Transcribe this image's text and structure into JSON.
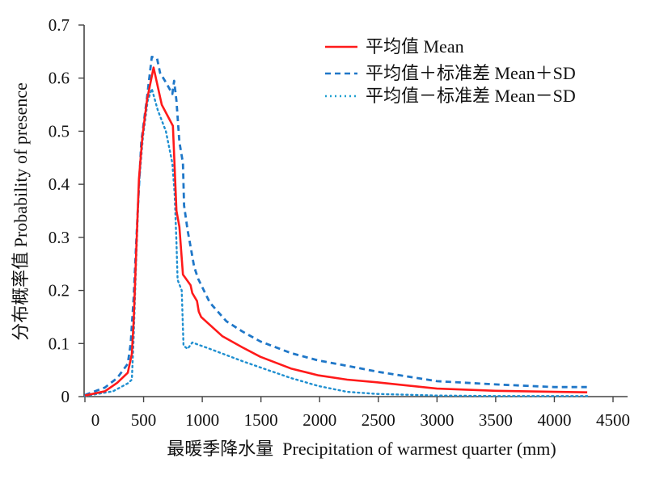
{
  "chart_data": {
    "type": "line",
    "title": "",
    "xlabel": "最暖季降水量  Precipitation of warmest quarter (mm)",
    "ylabel": "分布概率值 Probability of presence",
    "xlim": [
      0,
      4500
    ],
    "ylim": [
      0,
      0.7
    ],
    "x_ticks": [
      0,
      500,
      1000,
      1500,
      2000,
      2500,
      3000,
      3500,
      4000,
      4500
    ],
    "x_tick_labels": [
      "0",
      "500",
      "1000",
      "1500",
      "2000",
      "2500",
      "3000",
      "3500",
      "4000",
      "4500"
    ],
    "y_ticks": [
      0,
      0.1,
      0.2,
      0.3,
      0.4,
      0.5,
      0.6,
      0.7
    ],
    "y_tick_labels": [
      "0",
      "0.1",
      "0.2",
      "0.3",
      "0.4",
      "0.5",
      "0.6",
      "0.7"
    ],
    "grid": false,
    "legend_position": "top-right",
    "series": [
      {
        "name": "平均值 Mean",
        "color": "#ff1a1a",
        "style": "solid",
        "x": [
          0,
          170,
          275,
          365,
          400,
          415,
          435,
          460,
          490,
          530,
          585,
          655,
          750,
          765,
          780,
          805,
          835,
          900,
          915,
          955,
          970,
          990,
          1170,
          1340,
          1495,
          1755,
          1990,
          2235,
          2490,
          3000,
          3500,
          4000,
          4280
        ],
        "y": [
          0.002,
          0.01,
          0.026,
          0.045,
          0.08,
          0.14,
          0.26,
          0.41,
          0.49,
          0.56,
          0.62,
          0.55,
          0.51,
          0.43,
          0.35,
          0.32,
          0.23,
          0.21,
          0.195,
          0.18,
          0.16,
          0.15,
          0.114,
          0.093,
          0.075,
          0.053,
          0.04,
          0.032,
          0.027,
          0.015,
          0.011,
          0.009,
          0.008
        ]
      },
      {
        "name": "平均值＋标准差 Mean＋SD",
        "color": "#1f77c8",
        "style": "dashed",
        "x": [
          0,
          170,
          275,
          365,
          390,
          415,
          450,
          480,
          530,
          570,
          615,
          640,
          695,
          745,
          760,
          780,
          805,
          835,
          845,
          875,
          900,
          930,
          965,
          1065,
          1205,
          1340,
          1495,
          1755,
          1990,
          2235,
          2490,
          3000,
          3500,
          4000,
          4280
        ],
        "y": [
          0.003,
          0.017,
          0.035,
          0.062,
          0.1,
          0.185,
          0.35,
          0.48,
          0.565,
          0.64,
          0.637,
          0.61,
          0.59,
          0.57,
          0.595,
          0.557,
          0.48,
          0.44,
          0.36,
          0.313,
          0.283,
          0.245,
          0.222,
          0.177,
          0.142,
          0.123,
          0.104,
          0.082,
          0.068,
          0.058,
          0.047,
          0.029,
          0.023,
          0.018,
          0.018
        ]
      },
      {
        "name": "平均值－标准差 Mean－SD",
        "color": "#1f77c8",
        "style": "dotted",
        "x": [
          0,
          240,
          365,
          400,
          415,
          435,
          460,
          495,
          535,
          570,
          620,
          690,
          745,
          765,
          780,
          790,
          825,
          840,
          875,
          915,
          1065,
          1340,
          1495,
          1755,
          1990,
          2235,
          2490,
          3000,
          3500,
          4000,
          4280
        ],
        "y": [
          0.001,
          0.01,
          0.025,
          0.032,
          0.108,
          0.245,
          0.4,
          0.49,
          0.557,
          0.58,
          0.54,
          0.5,
          0.44,
          0.38,
          0.29,
          0.22,
          0.2,
          0.096,
          0.09,
          0.102,
          0.09,
          0.067,
          0.055,
          0.035,
          0.02,
          0.009,
          0.005,
          0.002,
          0.001,
          0.001,
          0.001
        ]
      }
    ]
  }
}
